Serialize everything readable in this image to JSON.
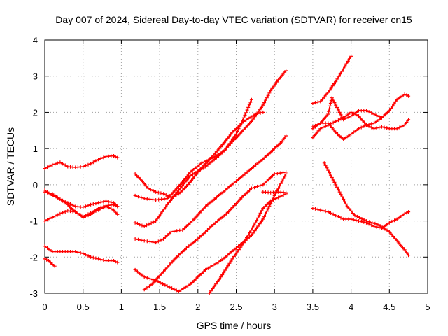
{
  "chart_data": {
    "type": "scatter",
    "title": "Day 007 of 2024, Sidereal Day-to-day VTEC variation (SDTVAR) for receiver cn15",
    "xlabel": "GPS time / hours",
    "ylabel": "SDTVAR / TECUs",
    "xlim": [
      0,
      5
    ],
    "ylim": [
      -3,
      4
    ],
    "xticks": [
      "0",
      "0.5",
      "1",
      "1.5",
      "2",
      "2.5",
      "3",
      "3.5",
      "4",
      "4.5",
      "5"
    ],
    "yticks": [
      "-3",
      "-2",
      "-1",
      "0",
      "1",
      "2",
      "3",
      "4"
    ],
    "grid": true,
    "marker": "+",
    "color": "#ff0000",
    "series": [
      {
        "name": "s1",
        "x": [
          0.0,
          0.1,
          0.2,
          0.3,
          0.4,
          0.5,
          0.6,
          0.7,
          0.8,
          0.9,
          0.95
        ],
        "y": [
          0.45,
          0.55,
          0.62,
          0.5,
          0.48,
          0.5,
          0.58,
          0.7,
          0.78,
          0.8,
          0.75
        ]
      },
      {
        "name": "s2",
        "x": [
          0.0,
          0.1,
          0.2,
          0.3,
          0.4,
          0.5,
          0.6,
          0.7,
          0.8,
          0.9,
          0.95
        ],
        "y": [
          -0.15,
          -0.3,
          -0.4,
          -0.5,
          -0.6,
          -0.62,
          -0.55,
          -0.5,
          -0.45,
          -0.5,
          -0.6
        ]
      },
      {
        "name": "s3",
        "x": [
          0.0,
          0.1,
          0.2,
          0.3,
          0.4,
          0.5,
          0.6,
          0.7,
          0.8,
          0.9,
          0.95
        ],
        "y": [
          -0.2,
          -0.25,
          -0.4,
          -0.55,
          -0.75,
          -0.88,
          -0.78,
          -0.7,
          -0.6,
          -0.7,
          -0.82
        ]
      },
      {
        "name": "s4",
        "x": [
          0.0,
          0.1,
          0.2,
          0.3,
          0.4,
          0.5,
          0.6,
          0.7,
          0.8,
          0.9,
          0.95
        ],
        "y": [
          -1.0,
          -0.9,
          -0.8,
          -0.72,
          -0.75,
          -0.9,
          -0.82,
          -0.65,
          -0.58,
          -0.55,
          -0.6
        ]
      },
      {
        "name": "s5",
        "x": [
          0.0,
          0.1,
          0.2,
          0.3,
          0.4,
          0.5,
          0.6,
          0.7,
          0.8,
          0.9,
          0.95
        ],
        "y": [
          -1.7,
          -1.85,
          -1.85,
          -1.85,
          -1.85,
          -1.9,
          -2.0,
          -2.05,
          -2.1,
          -2.1,
          -2.15
        ]
      },
      {
        "name": "s6",
        "x": [
          0.0,
          0.05,
          0.1,
          0.13
        ],
        "y": [
          -2.05,
          -2.1,
          -2.2,
          -2.25
        ]
      },
      {
        "name": "s7",
        "x": [
          1.18,
          1.25,
          1.35,
          1.45,
          1.55,
          1.65,
          1.75,
          1.85,
          2.0,
          2.15,
          2.3,
          2.45,
          2.6,
          2.75,
          2.85
        ],
        "y": [
          0.3,
          0.15,
          -0.1,
          -0.2,
          -0.25,
          -0.35,
          -0.25,
          -0.05,
          0.35,
          0.7,
          1.05,
          1.45,
          1.75,
          1.95,
          2.0
        ]
      },
      {
        "name": "s8",
        "x": [
          1.18,
          1.3,
          1.45,
          1.6,
          1.75,
          1.9,
          2.05,
          2.2,
          2.35,
          2.5,
          2.6,
          2.7
        ],
        "y": [
          -0.3,
          -0.38,
          -0.42,
          -0.38,
          -0.05,
          0.35,
          0.6,
          0.75,
          0.95,
          1.4,
          1.85,
          2.35
        ]
      },
      {
        "name": "s9",
        "x": [
          1.18,
          1.3,
          1.45,
          1.6,
          1.75,
          1.9,
          2.1,
          2.3,
          2.5,
          2.7,
          2.85,
          2.95,
          3.05,
          3.15
        ],
        "y": [
          -1.05,
          -1.15,
          -1.0,
          -0.55,
          -0.15,
          0.25,
          0.5,
          0.85,
          1.3,
          1.75,
          2.2,
          2.6,
          2.9,
          3.15
        ]
      },
      {
        "name": "s10",
        "x": [
          1.18,
          1.3,
          1.45,
          1.55,
          1.65,
          1.8,
          1.95,
          2.1,
          2.3,
          2.5,
          2.7,
          2.9,
          3.1,
          3.15
        ],
        "y": [
          -1.5,
          -1.55,
          -1.6,
          -1.5,
          -1.3,
          -1.25,
          -0.95,
          -0.6,
          -0.25,
          0.1,
          0.45,
          0.8,
          1.2,
          1.35
        ]
      },
      {
        "name": "s11",
        "x": [
          1.18,
          1.3,
          1.45,
          1.6,
          1.75,
          1.9,
          2.1,
          2.3,
          2.5,
          2.7,
          2.85,
          3.0,
          3.15
        ],
        "y": [
          -2.35,
          -2.55,
          -2.65,
          -2.8,
          -2.95,
          -2.75,
          -2.35,
          -2.1,
          -1.75,
          -1.4,
          -0.95,
          -0.3,
          0.3
        ]
      },
      {
        "name": "s12",
        "x": [
          1.3,
          1.4,
          1.55,
          1.7,
          1.85,
          2.0,
          2.2,
          2.4,
          2.55,
          2.7,
          2.85,
          3.0,
          3.15
        ],
        "y": [
          -2.9,
          -2.75,
          -2.4,
          -2.05,
          -1.75,
          -1.5,
          -1.1,
          -0.75,
          -0.4,
          -0.1,
          0.0,
          0.3,
          0.35
        ]
      },
      {
        "name": "s13",
        "x": [
          2.15,
          2.3,
          2.45,
          2.6,
          2.75,
          2.85,
          2.95,
          3.05,
          3.15
        ],
        "y": [
          -3.0,
          -2.55,
          -2.05,
          -1.6,
          -1.05,
          -0.65,
          -0.45,
          -0.35,
          -0.25
        ]
      },
      {
        "name": "s14",
        "x": [
          2.85,
          2.95,
          3.05,
          3.15
        ],
        "y": [
          -0.2,
          -0.22,
          -0.2,
          -0.22
        ]
      },
      {
        "name": "s15",
        "x": [
          3.5,
          3.6,
          3.7,
          3.8,
          3.9,
          4.0
        ],
        "y": [
          2.25,
          2.3,
          2.55,
          2.85,
          3.2,
          3.55
        ]
      },
      {
        "name": "s16",
        "x": [
          3.5,
          3.6,
          3.7,
          3.75,
          3.8,
          3.9,
          4.0,
          4.1,
          4.2,
          4.3,
          4.4,
          4.5,
          4.6,
          4.7,
          4.75
        ],
        "y": [
          1.6,
          1.7,
          1.95,
          2.4,
          2.2,
          1.8,
          1.9,
          2.05,
          2.05,
          1.95,
          1.85,
          2.05,
          2.35,
          2.5,
          2.45
        ]
      },
      {
        "name": "s17",
        "x": [
          3.5,
          3.6,
          3.7,
          3.8,
          3.9,
          4.0,
          4.1,
          4.2,
          4.3,
          4.4,
          4.5,
          4.6,
          4.7,
          4.75
        ],
        "y": [
          1.3,
          1.55,
          1.65,
          1.75,
          1.85,
          2.0,
          1.9,
          1.65,
          1.55,
          1.6,
          1.55,
          1.55,
          1.65,
          1.8
        ]
      },
      {
        "name": "s18",
        "x": [
          3.5,
          3.6,
          3.7,
          3.8,
          3.9,
          4.0,
          4.1,
          4.2,
          4.3,
          4.4
        ],
        "y": [
          1.55,
          1.7,
          1.7,
          1.45,
          1.25,
          1.4,
          1.55,
          1.65,
          1.7,
          1.85
        ]
      },
      {
        "name": "s19",
        "x": [
          3.5,
          3.6,
          3.7,
          3.8,
          3.9,
          4.0,
          4.1,
          4.2,
          4.3,
          4.4,
          4.5,
          4.6,
          4.7,
          4.75
        ],
        "y": [
          -0.65,
          -0.7,
          -0.75,
          -0.85,
          -0.95,
          -0.95,
          -1.0,
          -1.05,
          -1.15,
          -1.2,
          -1.05,
          -0.95,
          -0.8,
          -0.75
        ]
      },
      {
        "name": "s20",
        "x": [
          3.65,
          3.75,
          3.85,
          3.95,
          4.05,
          4.2,
          4.35,
          4.5,
          4.6,
          4.7,
          4.75
        ],
        "y": [
          0.6,
          0.2,
          -0.2,
          -0.6,
          -0.85,
          -1.0,
          -1.1,
          -1.3,
          -1.55,
          -1.8,
          -1.95
        ]
      }
    ]
  }
}
